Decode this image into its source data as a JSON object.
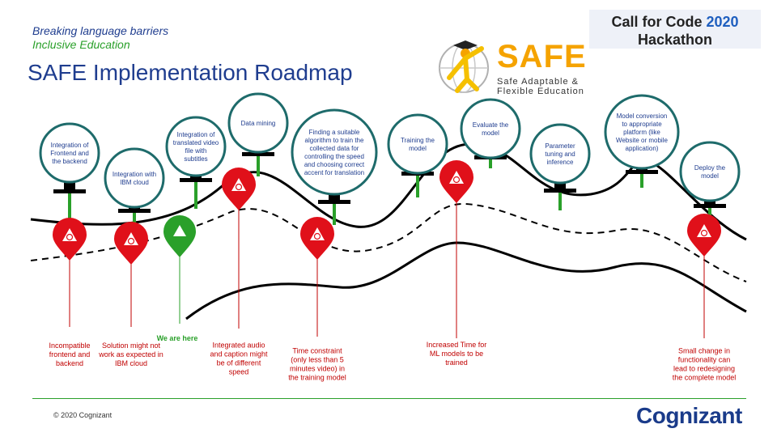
{
  "header": {
    "tagline_1": "Breaking language barriers",
    "tagline_2": "Inclusive Education",
    "title": "SAFE Implementation Roadmap"
  },
  "event_badge": {
    "line1": "Call for Code",
    "year": "2020",
    "line2": "Hackathon"
  },
  "logo": {
    "word": "SAFE",
    "subtitle_1": "Safe Adaptable &",
    "subtitle_2": "Flexible Education"
  },
  "milestones": [
    [
      "Integration of",
      "Frontend and",
      "the backend"
    ],
    [
      "Integration  with",
      "IBM cloud"
    ],
    [
      "Integration of",
      "translated video",
      "file with",
      "subtitles"
    ],
    [
      "Data mining"
    ],
    [
      "Finding a suitable",
      "algorithm to train the",
      "collected data for",
      "controlling the speed",
      "and choosing correct",
      "accent for translation"
    ],
    [
      "Training the",
      "model"
    ],
    [
      "Evaluate the",
      "model"
    ],
    [
      "Parameter",
      "tuning and",
      "inference"
    ],
    [
      "Model conversion",
      "to appropriate",
      "platform (like",
      "Website or mobile",
      "application)"
    ],
    [
      "Deploy the",
      "model"
    ]
  ],
  "risks": [
    [
      "Incompatible",
      "frontend and",
      "backend"
    ],
    [
      "Solution might not",
      "work as expected in",
      "IBM cloud"
    ],
    [
      "Integrated audio",
      "and caption might",
      "be of different",
      "speed"
    ],
    [
      "Time constraint",
      "(only less than 5",
      "minutes video) in",
      "the training model"
    ],
    [
      "Increased Time for",
      "ML models to be",
      "trained"
    ],
    [
      "Small change in",
      "functionality can",
      "lead to redesigning",
      "the complete model"
    ]
  ],
  "current_position_label": "We are here",
  "colors": {
    "brand_blue": "#1f3d8f",
    "green": "#2aa02a",
    "risk_red": "#e0101a",
    "logo_orange": "#f5a300"
  },
  "footer": {
    "copyright": "© 2020 Cognizant",
    "company": "Cognizant"
  }
}
